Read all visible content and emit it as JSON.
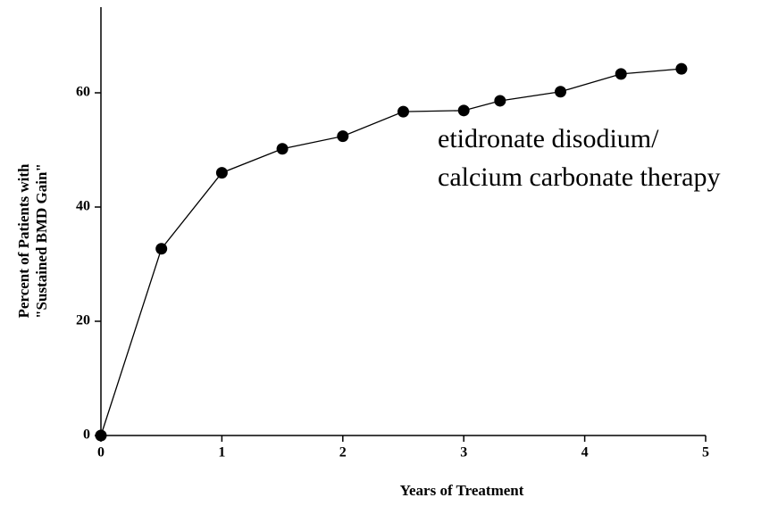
{
  "chart_data": {
    "type": "line",
    "x_label": "Years of Treatment",
    "y_label": [
      "Percent of Patients with",
      "\"Sustained BMD Gain\""
    ],
    "annotation": [
      "etidronate disodium/",
      "calcium carbonate therapy"
    ],
    "x": [
      0,
      0.5,
      1,
      1.5,
      2,
      2.5,
      3,
      3.3,
      3.8,
      4.3,
      4.8
    ],
    "series": [
      {
        "color": "#000000",
        "values": [
          0,
          32.7,
          46,
          50.2,
          52.4,
          56.7,
          56.9,
          58.6,
          60.2,
          63.3,
          64.2
        ]
      }
    ],
    "xlim": [
      0,
      5
    ],
    "xticks": [
      0,
      1,
      2,
      3,
      4,
      5
    ],
    "ylim": [
      0,
      75
    ],
    "yticks": [
      0,
      20,
      40,
      60
    ],
    "grid": false
  }
}
